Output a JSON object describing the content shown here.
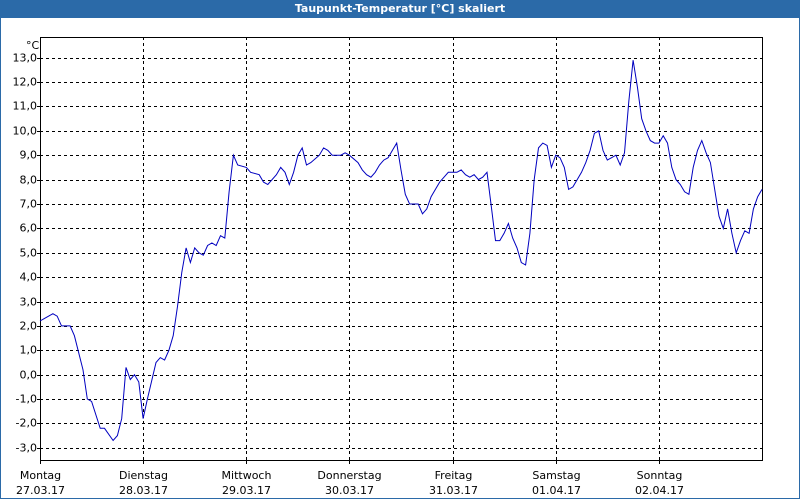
{
  "chart_data": {
    "type": "line",
    "title": "Taupunkt-Temperatur [°C] skaliert",
    "ylabel": "°C",
    "color": "#0000c0",
    "grid": true,
    "xlim": [
      0,
      168
    ],
    "ylim": [
      -3.5,
      13.85
    ],
    "xticks": [
      {
        "value": 0,
        "label": "Montag\n27.03.17"
      },
      {
        "value": 24,
        "label": "Dienstag\n28.03.17"
      },
      {
        "value": 48,
        "label": "Mittwoch\n29.03.17"
      },
      {
        "value": 72,
        "label": "Donnerstag\n30.03.17"
      },
      {
        "value": 96,
        "label": "Freitag\n31.03.17"
      },
      {
        "value": 120,
        "label": "Samstag\n01.04.17"
      },
      {
        "value": 144,
        "label": "Sonntag\n02.04.17"
      }
    ],
    "yticks": [
      {
        "value": -3,
        "label": "-3,0"
      },
      {
        "value": -2,
        "label": "-2,0"
      },
      {
        "value": -1,
        "label": "-1,0"
      },
      {
        "value": 0,
        "label": "0,0"
      },
      {
        "value": 1,
        "label": "1,0"
      },
      {
        "value": 2,
        "label": "2,0"
      },
      {
        "value": 3,
        "label": "3,0"
      },
      {
        "value": 4,
        "label": "4,0"
      },
      {
        "value": 5,
        "label": "5,0"
      },
      {
        "value": 6,
        "label": "6,0"
      },
      {
        "value": 7,
        "label": "7,0"
      },
      {
        "value": 8,
        "label": "8,0"
      },
      {
        "value": 9,
        "label": "9,0"
      },
      {
        "value": 10,
        "label": "10,0"
      },
      {
        "value": 11,
        "label": "11,0"
      },
      {
        "value": 12,
        "label": "12,0"
      },
      {
        "value": 13,
        "label": "13,0"
      }
    ],
    "x": [
      0,
      1,
      3,
      4,
      5,
      7,
      8,
      10,
      11,
      12,
      14,
      15,
      17,
      18,
      19,
      20,
      21,
      22,
      23,
      24,
      25,
      27,
      28,
      29,
      30,
      31,
      32,
      33,
      34,
      35,
      36,
      37,
      38,
      39,
      40,
      41,
      42,
      43,
      44,
      45,
      46,
      48,
      49,
      51,
      52,
      53,
      55,
      56,
      57,
      58,
      59,
      60,
      61,
      62,
      63,
      65,
      66,
      67,
      68,
      70,
      71,
      72,
      74,
      75,
      76,
      77,
      78,
      79,
      80,
      81,
      82,
      83,
      84,
      85,
      86,
      87,
      88,
      89,
      90,
      91,
      92,
      93,
      94,
      95,
      96,
      97,
      98,
      99,
      100,
      101,
      102,
      103,
      104,
      105,
      106,
      107,
      108,
      109,
      110,
      111,
      112,
      113,
      114,
      115,
      116,
      117,
      118,
      119,
      120,
      121,
      122,
      123,
      124,
      125,
      126,
      127,
      128,
      129,
      130,
      131,
      132,
      133,
      134,
      135,
      136,
      137,
      138,
      139,
      140,
      141,
      142,
      143,
      144,
      145,
      146,
      147,
      148,
      149,
      150,
      151,
      152,
      153,
      154,
      155,
      156,
      157,
      158,
      159,
      160,
      161,
      162,
      163,
      164,
      165,
      166,
      167,
      168
    ],
    "values": [
      2.2,
      2.3,
      2.5,
      2.4,
      2.0,
      2.0,
      1.6,
      0.2,
      -1.0,
      -1.1,
      -2.2,
      -2.2,
      -2.7,
      -2.5,
      -1.8,
      0.3,
      -0.2,
      0.0,
      -0.3,
      -1.8,
      -1.0,
      0.5,
      0.7,
      0.6,
      1.0,
      1.6,
      2.8,
      4.2,
      5.2,
      4.6,
      5.2,
      5.0,
      4.9,
      5.3,
      5.4,
      5.3,
      5.7,
      5.6,
      7.5,
      9.0,
      8.6,
      8.5,
      8.3,
      8.2,
      7.9,
      7.8,
      8.2,
      8.5,
      8.3,
      7.8,
      8.3,
      9.0,
      9.3,
      8.6,
      8.7,
      9.0,
      9.3,
      9.2,
      9.0,
      9.0,
      9.1,
      9.0,
      8.7,
      8.4,
      8.2,
      8.1,
      8.3,
      8.6,
      8.8,
      8.9,
      9.2,
      9.5,
      8.4,
      7.4,
      7.0,
      7.0,
      7.0,
      6.6,
      6.8,
      7.3,
      7.6,
      7.9,
      8.1,
      8.3,
      8.3,
      8.3,
      8.4,
      8.2,
      8.1,
      8.2,
      8.0,
      8.1,
      8.3,
      6.9,
      5.5,
      5.5,
      5.8,
      6.2,
      5.6,
      5.2,
      4.6,
      4.5,
      5.8,
      8.0,
      9.3,
      9.5,
      9.4,
      8.5,
      9.0,
      8.9,
      8.5,
      7.6,
      7.7,
      8.0,
      8.3,
      8.7,
      9.2,
      9.9,
      10.0,
      9.2,
      8.8,
      8.9,
      9.0,
      8.6,
      9.1,
      11.2,
      12.9,
      11.8,
      10.5,
      10.0,
      9.6,
      9.5,
      9.5,
      9.8,
      9.5,
      8.5,
      8.0,
      7.8,
      7.5,
      7.4,
      8.5,
      9.2,
      9.6,
      9.1,
      8.7,
      7.6,
      6.5,
      6.0,
      6.8,
      5.8,
      5.0,
      5.5,
      5.9,
      5.8,
      6.8,
      7.3,
      7.6
    ]
  }
}
